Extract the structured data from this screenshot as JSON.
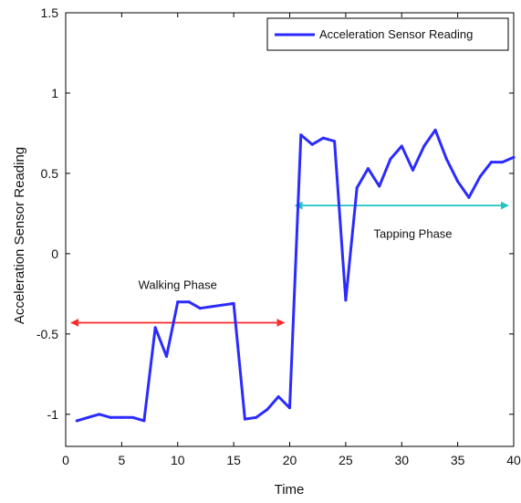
{
  "chart_data": {
    "type": "line",
    "title": "",
    "xlabel": "Time",
    "ylabel": "Acceleration Sensor Reading",
    "xlim": [
      0,
      40
    ],
    "ylim": [
      -1.2,
      1.5
    ],
    "x_ticks": [
      0,
      5,
      10,
      15,
      20,
      25,
      30,
      35,
      40
    ],
    "y_ticks": [
      -1,
      -0.5,
      0,
      0.5,
      1,
      1.5
    ],
    "x_tick_labels": [
      "0",
      "5",
      "10",
      "15",
      "20",
      "25",
      "30",
      "35",
      "40"
    ],
    "y_tick_labels": [
      "-1",
      "-0.5",
      "0",
      "0.5",
      "1",
      "1.5"
    ],
    "grid": false,
    "legend_position": "top-right",
    "series": [
      {
        "name": "Acceleration Sensor Reading",
        "color": "#2b2bff",
        "x": [
          1,
          2,
          3,
          4,
          5,
          6,
          7,
          8,
          9,
          10,
          11,
          12,
          13,
          14,
          15,
          16,
          17,
          18,
          19,
          20,
          21,
          22,
          23,
          24,
          25,
          26,
          27,
          28,
          29,
          30,
          31,
          32,
          33,
          34,
          35,
          36,
          37,
          38,
          39,
          40
        ],
        "y": [
          -1.04,
          -1.02,
          -1.0,
          -1.02,
          -1.02,
          -1.02,
          -1.04,
          -0.46,
          -0.64,
          -0.3,
          -0.3,
          -0.34,
          -0.33,
          -0.32,
          -0.31,
          -1.03,
          -1.02,
          -0.97,
          -0.89,
          -0.96,
          0.74,
          0.68,
          0.72,
          0.7,
          -0.29,
          0.41,
          0.53,
          0.42,
          0.59,
          0.67,
          0.52,
          0.67,
          0.77,
          0.59,
          0.45,
          0.35,
          0.48,
          0.57,
          0.57,
          0.6
        ]
      }
    ],
    "annotations": [
      {
        "text": "Walking Phase",
        "label_x": 10,
        "label_y": -0.22,
        "arrow_from": [
          0.5,
          -0.43
        ],
        "arrow_to": [
          19.5,
          -0.43
        ],
        "color": "#ff2a2a"
      },
      {
        "text": "Tapping Phase",
        "label_x": 31,
        "label_y": 0.1,
        "arrow_from": [
          20.5,
          0.3
        ],
        "arrow_to": [
          39.5,
          0.3
        ],
        "color": "#21c3c3"
      }
    ]
  }
}
